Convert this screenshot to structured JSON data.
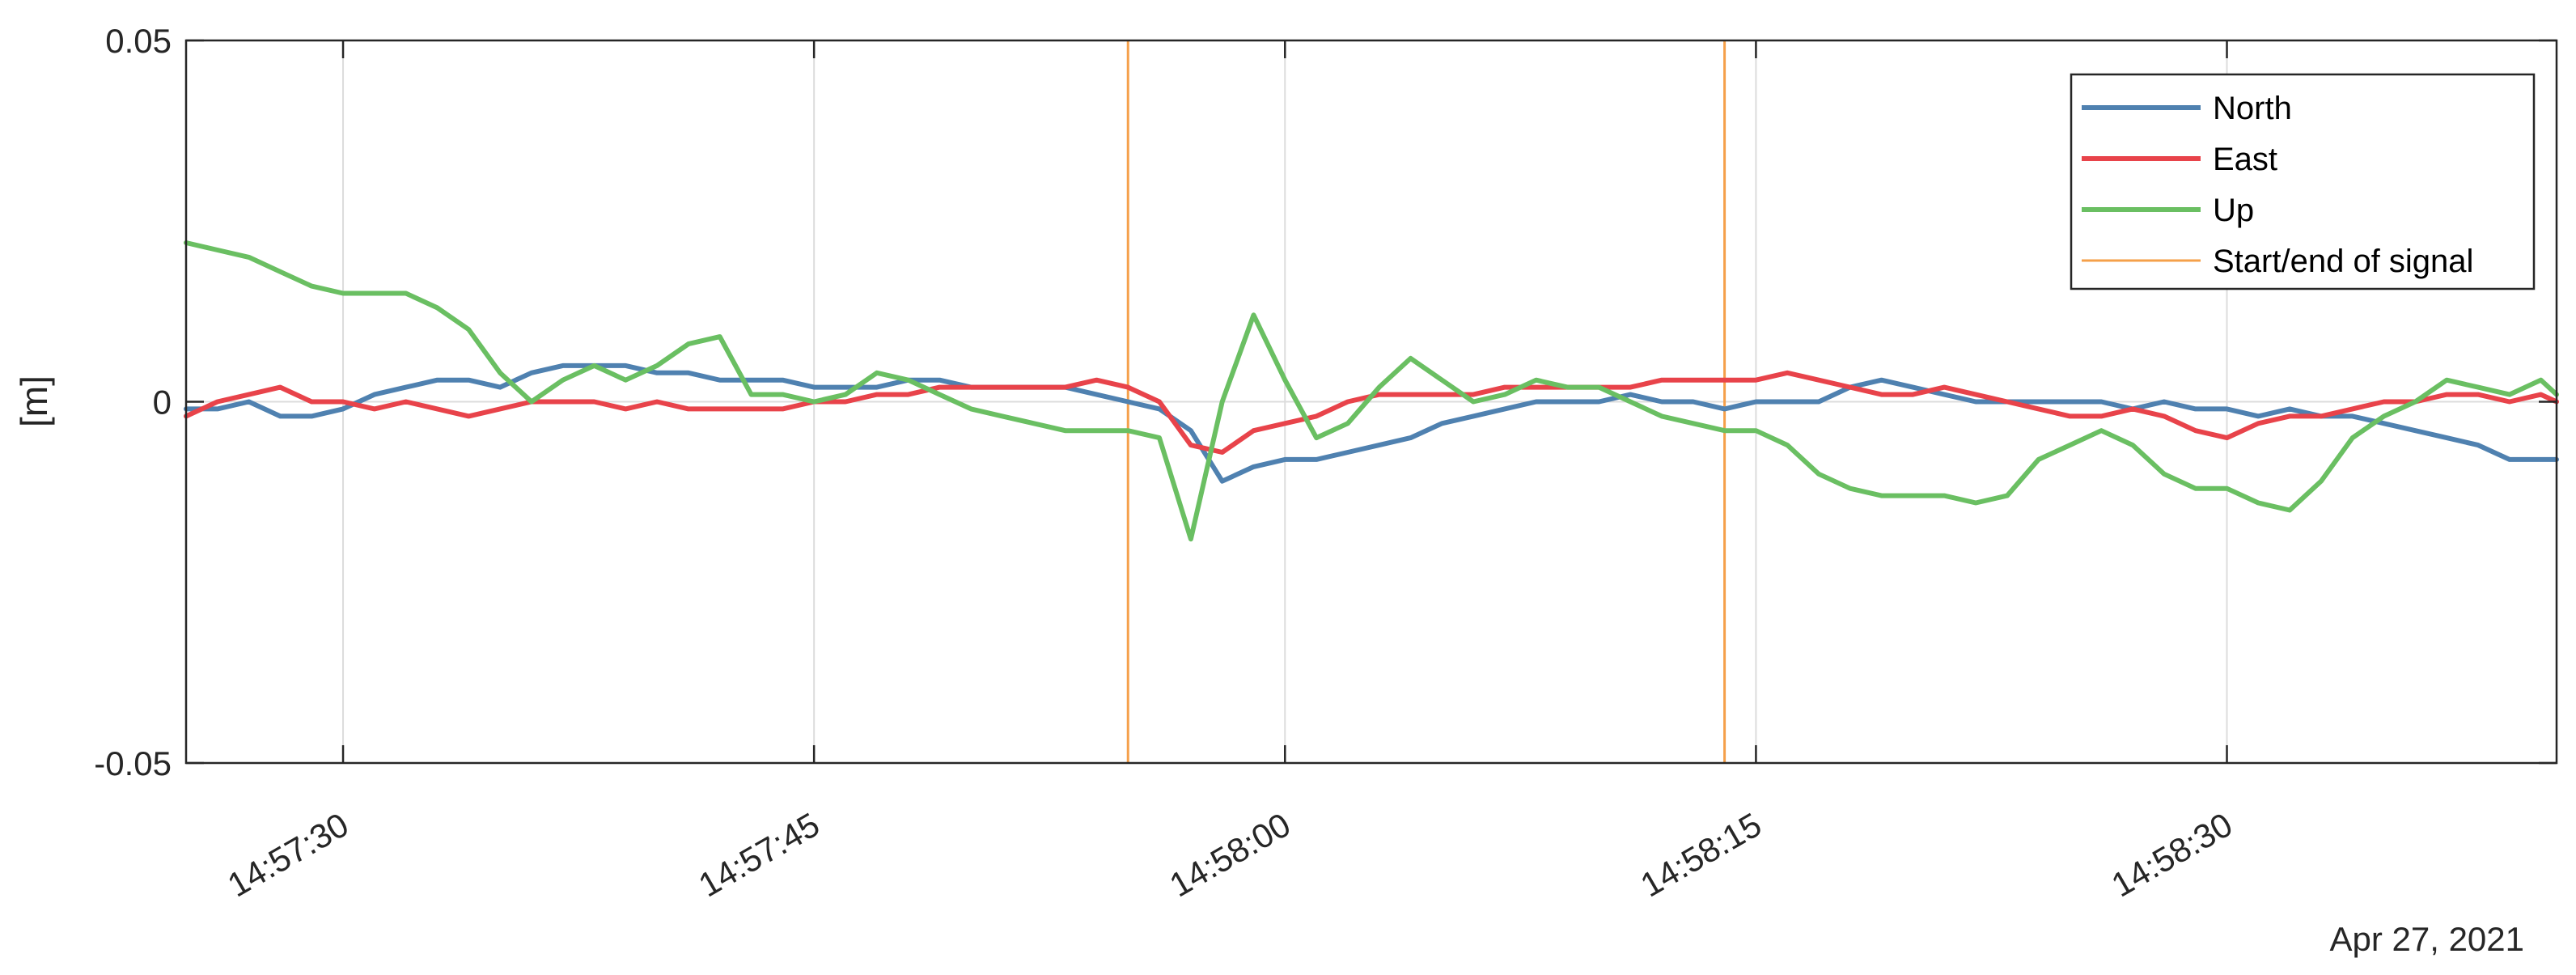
{
  "chart_data": {
    "type": "line",
    "ylabel": "[m]",
    "ylim": [
      -0.05,
      0.05
    ],
    "yticks": [
      -0.05,
      0,
      0.05
    ],
    "ytick_labels": [
      "-0.05",
      "0",
      "0.05"
    ],
    "xrange": [
      "14:57:25",
      "14:58:40.5"
    ],
    "xticks": [
      "14:57:30",
      "14:57:45",
      "14:58:00",
      "14:58:15",
      "14:58:30"
    ],
    "date_label": "Apr 27, 2021",
    "grid": true,
    "legend_position": "top-right",
    "markers": {
      "name": "Start/end of signal",
      "color": "#f5a04a",
      "x": [
        "14:57:55",
        "14:58:14"
      ]
    },
    "series": [
      {
        "name": "North",
        "color": "#4f81b0",
        "points": [
          [
            "14:57:25",
            -0.001
          ],
          [
            "14:57:26",
            -0.001
          ],
          [
            "14:57:27",
            0.0
          ],
          [
            "14:57:28",
            -0.002
          ],
          [
            "14:57:29",
            -0.002
          ],
          [
            "14:57:30",
            -0.001
          ],
          [
            "14:57:31",
            0.001
          ],
          [
            "14:57:32",
            0.002
          ],
          [
            "14:57:33",
            0.003
          ],
          [
            "14:57:34",
            0.003
          ],
          [
            "14:57:35",
            0.002
          ],
          [
            "14:57:36",
            0.004
          ],
          [
            "14:57:37",
            0.005
          ],
          [
            "14:57:38",
            0.005
          ],
          [
            "14:57:39",
            0.005
          ],
          [
            "14:57:40",
            0.004
          ],
          [
            "14:57:41",
            0.004
          ],
          [
            "14:57:42",
            0.003
          ],
          [
            "14:57:43",
            0.003
          ],
          [
            "14:57:44",
            0.003
          ],
          [
            "14:57:45",
            0.002
          ],
          [
            "14:57:46",
            0.002
          ],
          [
            "14:57:47",
            0.002
          ],
          [
            "14:57:48",
            0.003
          ],
          [
            "14:57:49",
            0.003
          ],
          [
            "14:57:50",
            0.002
          ],
          [
            "14:57:51",
            0.002
          ],
          [
            "14:57:52",
            0.002
          ],
          [
            "14:57:53",
            0.002
          ],
          [
            "14:57:54",
            0.001
          ],
          [
            "14:57:55",
            0.0
          ],
          [
            "14:57:56",
            -0.001
          ],
          [
            "14:57:57",
            -0.004
          ],
          [
            "14:57:58",
            -0.011
          ],
          [
            "14:57:59",
            -0.009
          ],
          [
            "14:58:00",
            -0.008
          ],
          [
            "14:58:01",
            -0.008
          ],
          [
            "14:58:02",
            -0.007
          ],
          [
            "14:58:03",
            -0.006
          ],
          [
            "14:58:04",
            -0.005
          ],
          [
            "14:58:05",
            -0.003
          ],
          [
            "14:58:06",
            -0.002
          ],
          [
            "14:58:07",
            -0.001
          ],
          [
            "14:58:08",
            0.0
          ],
          [
            "14:58:09",
            0.0
          ],
          [
            "14:58:10",
            0.0
          ],
          [
            "14:58:11",
            0.001
          ],
          [
            "14:58:12",
            0.0
          ],
          [
            "14:58:13",
            0.0
          ],
          [
            "14:58:14",
            -0.001
          ],
          [
            "14:58:15",
            0.0
          ],
          [
            "14:58:16",
            0.0
          ],
          [
            "14:58:17",
            0.0
          ],
          [
            "14:58:18",
            0.002
          ],
          [
            "14:58:19",
            0.003
          ],
          [
            "14:58:20",
            0.002
          ],
          [
            "14:58:21",
            0.001
          ],
          [
            "14:58:22",
            0.0
          ],
          [
            "14:58:23",
            0.0
          ],
          [
            "14:58:24",
            0.0
          ],
          [
            "14:58:25",
            0.0
          ],
          [
            "14:58:26",
            0.0
          ],
          [
            "14:58:27",
            -0.001
          ],
          [
            "14:58:28",
            0.0
          ],
          [
            "14:58:29",
            -0.001
          ],
          [
            "14:58:30",
            -0.001
          ],
          [
            "14:58:31",
            -0.002
          ],
          [
            "14:58:32",
            -0.001
          ],
          [
            "14:58:33",
            -0.002
          ],
          [
            "14:58:34",
            -0.002
          ],
          [
            "14:58:35",
            -0.003
          ],
          [
            "14:58:36",
            -0.004
          ],
          [
            "14:58:37",
            -0.005
          ],
          [
            "14:58:38",
            -0.006
          ],
          [
            "14:58:39",
            -0.008
          ],
          [
            "14:58:40",
            -0.008
          ],
          [
            "14:58:40.5",
            -0.008
          ]
        ]
      },
      {
        "name": "East",
        "color": "#e8434a",
        "points": [
          [
            "14:57:25",
            -0.002
          ],
          [
            "14:57:26",
            0.0
          ],
          [
            "14:57:27",
            0.001
          ],
          [
            "14:57:28",
            0.002
          ],
          [
            "14:57:29",
            0.0
          ],
          [
            "14:57:30",
            0.0
          ],
          [
            "14:57:31",
            -0.001
          ],
          [
            "14:57:32",
            0.0
          ],
          [
            "14:57:33",
            -0.001
          ],
          [
            "14:57:34",
            -0.002
          ],
          [
            "14:57:35",
            -0.001
          ],
          [
            "14:57:36",
            0.0
          ],
          [
            "14:57:37",
            0.0
          ],
          [
            "14:57:38",
            0.0
          ],
          [
            "14:57:39",
            -0.001
          ],
          [
            "14:57:40",
            0.0
          ],
          [
            "14:57:41",
            -0.001
          ],
          [
            "14:57:42",
            -0.001
          ],
          [
            "14:57:43",
            -0.001
          ],
          [
            "14:57:44",
            -0.001
          ],
          [
            "14:57:45",
            0.0
          ],
          [
            "14:57:46",
            0.0
          ],
          [
            "14:57:47",
            0.001
          ],
          [
            "14:57:48",
            0.001
          ],
          [
            "14:57:49",
            0.002
          ],
          [
            "14:57:50",
            0.002
          ],
          [
            "14:57:51",
            0.002
          ],
          [
            "14:57:52",
            0.002
          ],
          [
            "14:57:53",
            0.002
          ],
          [
            "14:57:54",
            0.003
          ],
          [
            "14:57:55",
            0.002
          ],
          [
            "14:57:56",
            0.0
          ],
          [
            "14:57:57",
            -0.006
          ],
          [
            "14:57:58",
            -0.007
          ],
          [
            "14:57:59",
            -0.004
          ],
          [
            "14:58:00",
            -0.003
          ],
          [
            "14:58:01",
            -0.002
          ],
          [
            "14:58:02",
            0.0
          ],
          [
            "14:58:03",
            0.001
          ],
          [
            "14:58:04",
            0.001
          ],
          [
            "14:58:05",
            0.001
          ],
          [
            "14:58:06",
            0.001
          ],
          [
            "14:58:07",
            0.002
          ],
          [
            "14:58:08",
            0.002
          ],
          [
            "14:58:09",
            0.002
          ],
          [
            "14:58:10",
            0.002
          ],
          [
            "14:58:11",
            0.002
          ],
          [
            "14:58:12",
            0.003
          ],
          [
            "14:58:13",
            0.003
          ],
          [
            "14:58:14",
            0.003
          ],
          [
            "14:58:15",
            0.003
          ],
          [
            "14:58:16",
            0.004
          ],
          [
            "14:58:17",
            0.003
          ],
          [
            "14:58:18",
            0.002
          ],
          [
            "14:58:19",
            0.001
          ],
          [
            "14:58:20",
            0.001
          ],
          [
            "14:58:21",
            0.002
          ],
          [
            "14:58:22",
            0.001
          ],
          [
            "14:58:23",
            0.0
          ],
          [
            "14:58:24",
            -0.001
          ],
          [
            "14:58:25",
            -0.002
          ],
          [
            "14:58:26",
            -0.002
          ],
          [
            "14:58:27",
            -0.001
          ],
          [
            "14:58:28",
            -0.002
          ],
          [
            "14:58:29",
            -0.004
          ],
          [
            "14:58:30",
            -0.005
          ],
          [
            "14:58:31",
            -0.003
          ],
          [
            "14:58:32",
            -0.002
          ],
          [
            "14:58:33",
            -0.002
          ],
          [
            "14:58:34",
            -0.001
          ],
          [
            "14:58:35",
            0.0
          ],
          [
            "14:58:36",
            0.0
          ],
          [
            "14:58:37",
            0.001
          ],
          [
            "14:58:38",
            0.001
          ],
          [
            "14:58:39",
            0.0
          ],
          [
            "14:58:40",
            0.001
          ],
          [
            "14:58:40.5",
            0.0
          ]
        ]
      },
      {
        "name": "Up",
        "color": "#6abf62",
        "points": [
          [
            "14:57:25",
            0.022
          ],
          [
            "14:57:26",
            0.021
          ],
          [
            "14:57:27",
            0.02
          ],
          [
            "14:57:28",
            0.018
          ],
          [
            "14:57:29",
            0.016
          ],
          [
            "14:57:30",
            0.015
          ],
          [
            "14:57:31",
            0.015
          ],
          [
            "14:57:32",
            0.015
          ],
          [
            "14:57:33",
            0.013
          ],
          [
            "14:57:34",
            0.01
          ],
          [
            "14:57:35",
            0.004
          ],
          [
            "14:57:36",
            0.0
          ],
          [
            "14:57:37",
            0.003
          ],
          [
            "14:57:38",
            0.005
          ],
          [
            "14:57:39",
            0.003
          ],
          [
            "14:57:40",
            0.005
          ],
          [
            "14:57:41",
            0.008
          ],
          [
            "14:57:42",
            0.009
          ],
          [
            "14:57:43",
            0.001
          ],
          [
            "14:57:44",
            0.001
          ],
          [
            "14:57:45",
            0.0
          ],
          [
            "14:57:46",
            0.001
          ],
          [
            "14:57:47",
            0.004
          ],
          [
            "14:57:48",
            0.003
          ],
          [
            "14:57:49",
            0.001
          ],
          [
            "14:57:50",
            -0.001
          ],
          [
            "14:57:51",
            -0.002
          ],
          [
            "14:57:52",
            -0.003
          ],
          [
            "14:57:53",
            -0.004
          ],
          [
            "14:57:54",
            -0.004
          ],
          [
            "14:57:55",
            -0.004
          ],
          [
            "14:57:56",
            -0.005
          ],
          [
            "14:57:57",
            -0.019
          ],
          [
            "14:57:58",
            0.0
          ],
          [
            "14:57:59",
            0.012
          ],
          [
            "14:58:00",
            0.003
          ],
          [
            "14:58:01",
            -0.005
          ],
          [
            "14:58:02",
            -0.003
          ],
          [
            "14:58:03",
            0.002
          ],
          [
            "14:58:04",
            0.006
          ],
          [
            "14:58:05",
            0.003
          ],
          [
            "14:58:06",
            0.0
          ],
          [
            "14:58:07",
            0.001
          ],
          [
            "14:58:08",
            0.003
          ],
          [
            "14:58:09",
            0.002
          ],
          [
            "14:58:10",
            0.002
          ],
          [
            "14:58:11",
            0.0
          ],
          [
            "14:58:12",
            -0.002
          ],
          [
            "14:58:13",
            -0.003
          ],
          [
            "14:58:14",
            -0.004
          ],
          [
            "14:58:15",
            -0.004
          ],
          [
            "14:58:16",
            -0.006
          ],
          [
            "14:58:17",
            -0.01
          ],
          [
            "14:58:18",
            -0.012
          ],
          [
            "14:58:19",
            -0.013
          ],
          [
            "14:58:20",
            -0.013
          ],
          [
            "14:58:21",
            -0.013
          ],
          [
            "14:58:22",
            -0.014
          ],
          [
            "14:58:23",
            -0.013
          ],
          [
            "14:58:24",
            -0.008
          ],
          [
            "14:58:25",
            -0.006
          ],
          [
            "14:58:26",
            -0.004
          ],
          [
            "14:58:27",
            -0.006
          ],
          [
            "14:58:28",
            -0.01
          ],
          [
            "14:58:29",
            -0.012
          ],
          [
            "14:58:30",
            -0.012
          ],
          [
            "14:58:31",
            -0.014
          ],
          [
            "14:58:32",
            -0.015
          ],
          [
            "14:58:33",
            -0.011
          ],
          [
            "14:58:34",
            -0.005
          ],
          [
            "14:58:35",
            -0.002
          ],
          [
            "14:58:36",
            0.0
          ],
          [
            "14:58:37",
            0.003
          ],
          [
            "14:58:38",
            0.002
          ],
          [
            "14:58:39",
            0.001
          ],
          [
            "14:58:40",
            0.003
          ],
          [
            "14:58:40.5",
            0.001
          ]
        ]
      }
    ]
  }
}
